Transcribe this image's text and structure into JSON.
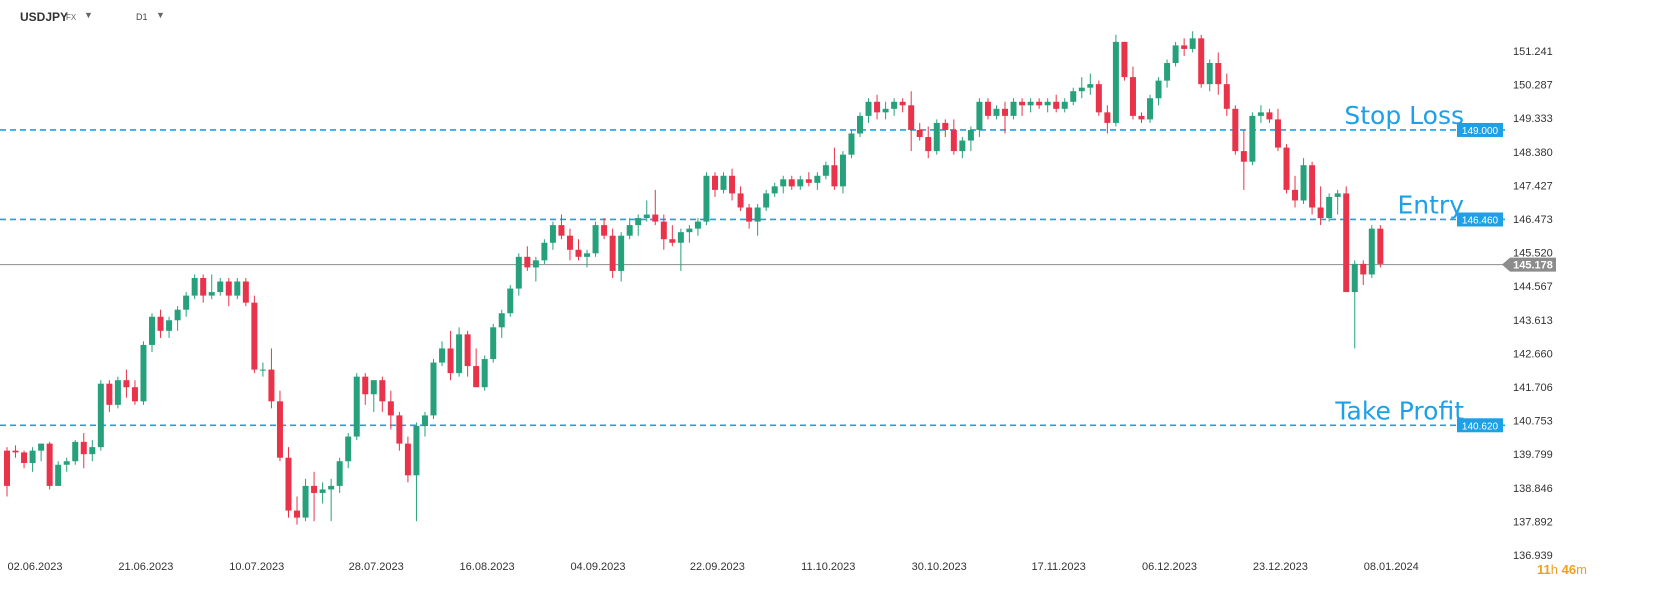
{
  "header": {
    "symbol": "USDJPY",
    "market": "FX",
    "timeframe": "D1",
    "dropdown_glyph": "▼"
  },
  "colors": {
    "bull": "#26a17b",
    "bear": "#e8334a",
    "level_line": "#1ea0e6",
    "level_label": "#1ea0e6",
    "current_line": "#8c8c8c",
    "axis_text": "#333333",
    "countdown": "#f0a020"
  },
  "countdown": {
    "hours": "11",
    "h_unit": "h",
    "minutes": "46",
    "m_unit": "m"
  },
  "chart_data": {
    "type": "candlestick",
    "symbol": "USDJPY",
    "timeframe": "D1",
    "ylim": [
      136.6,
      151.9
    ],
    "y_ticks": [
      "151.241",
      "150.287",
      "149.333",
      "148.380",
      "147.427",
      "146.473",
      "145.520",
      "144.567",
      "143.613",
      "142.660",
      "141.706",
      "140.753",
      "139.799",
      "138.846",
      "137.892",
      "136.939"
    ],
    "x_ticks": [
      {
        "label": "02.06.2023",
        "index": 0
      },
      {
        "label": "21.06.2023",
        "index": 13
      },
      {
        "label": "10.07.2023",
        "index": 26
      },
      {
        "label": "28.07.2023",
        "index": 40
      },
      {
        "label": "16.08.2023",
        "index": 53
      },
      {
        "label": "04.09.2023",
        "index": 66
      },
      {
        "label": "22.09.2023",
        "index": 80
      },
      {
        "label": "11.10.2023",
        "index": 93
      },
      {
        "label": "30.10.2023",
        "index": 106
      },
      {
        "label": "17.11.2023",
        "index": 120
      },
      {
        "label": "06.12.2023",
        "index": 133
      },
      {
        "label": "23.12.2023",
        "index": 146
      },
      {
        "label": "08.01.2024",
        "index": 159
      }
    ],
    "levels": [
      {
        "name": "Stop Loss",
        "price": 149.0,
        "label": "149.000"
      },
      {
        "name": "Entry",
        "price": 146.46,
        "label": "146.460"
      },
      {
        "name": "Take Profit",
        "price": 140.62,
        "label": "140.620"
      }
    ],
    "current_price": {
      "price": 145.178,
      "label": "145.178"
    },
    "candles": [
      [
        139.9,
        140.0,
        138.6,
        138.9
      ],
      [
        139.9,
        140.05,
        139.7,
        139.85
      ],
      [
        139.85,
        139.9,
        139.4,
        139.55
      ],
      [
        139.55,
        140.0,
        139.3,
        139.9
      ],
      [
        139.9,
        140.1,
        139.6,
        140.1
      ],
      [
        140.1,
        140.15,
        138.8,
        138.9
      ],
      [
        138.9,
        139.6,
        138.9,
        139.5
      ],
      [
        139.5,
        139.7,
        139.3,
        139.6
      ],
      [
        139.6,
        140.2,
        139.5,
        140.15
      ],
      [
        140.15,
        140.4,
        139.4,
        139.8
      ],
      [
        139.8,
        140.2,
        139.6,
        140.0
      ],
      [
        140.0,
        141.9,
        139.9,
        141.8
      ],
      [
        141.8,
        141.9,
        141.0,
        141.2
      ],
      [
        141.2,
        142.0,
        141.1,
        141.9
      ],
      [
        141.9,
        142.2,
        141.4,
        141.7
      ],
      [
        141.7,
        141.9,
        141.2,
        141.3
      ],
      [
        141.3,
        143.0,
        141.2,
        142.9
      ],
      [
        142.9,
        143.8,
        142.7,
        143.7
      ],
      [
        143.7,
        143.9,
        143.1,
        143.3
      ],
      [
        143.3,
        143.7,
        143.1,
        143.6
      ],
      [
        143.6,
        144.0,
        143.3,
        143.9
      ],
      [
        143.9,
        144.4,
        143.7,
        144.3
      ],
      [
        144.3,
        144.9,
        144.2,
        144.8
      ],
      [
        144.8,
        144.9,
        144.1,
        144.3
      ],
      [
        144.3,
        144.9,
        144.2,
        144.4
      ],
      [
        144.4,
        144.8,
        144.3,
        144.7
      ],
      [
        144.7,
        144.8,
        144.0,
        144.3
      ],
      [
        144.3,
        144.8,
        144.2,
        144.7
      ],
      [
        144.7,
        144.8,
        144.0,
        144.1
      ],
      [
        144.1,
        144.3,
        142.1,
        142.2
      ],
      [
        142.2,
        142.4,
        142.0,
        142.2
      ],
      [
        142.2,
        142.8,
        141.1,
        141.3
      ],
      [
        141.3,
        141.6,
        139.6,
        139.7
      ],
      [
        139.7,
        140.0,
        138.0,
        138.2
      ],
      [
        138.2,
        138.6,
        137.8,
        138.0
      ],
      [
        138.0,
        139.1,
        137.9,
        138.9
      ],
      [
        138.9,
        139.3,
        137.9,
        138.7
      ],
      [
        138.7,
        139.0,
        138.4,
        138.8
      ],
      [
        138.8,
        139.1,
        137.9,
        138.9
      ],
      [
        138.9,
        139.7,
        138.7,
        139.6
      ],
      [
        139.6,
        140.4,
        139.4,
        140.3
      ],
      [
        140.3,
        142.1,
        140.2,
        142.0
      ],
      [
        142.0,
        142.1,
        141.2,
        141.5
      ],
      [
        141.5,
        141.9,
        141.0,
        141.9
      ],
      [
        141.9,
        142.0,
        141.0,
        141.3
      ],
      [
        141.3,
        141.6,
        140.5,
        140.9
      ],
      [
        140.9,
        141.0,
        139.9,
        140.1
      ],
      [
        140.1,
        140.3,
        139.0,
        139.2
      ],
      [
        139.2,
        140.7,
        137.9,
        140.6
      ],
      [
        140.6,
        141.0,
        140.3,
        140.9
      ],
      [
        140.9,
        142.5,
        140.8,
        142.4
      ],
      [
        142.4,
        143.0,
        142.3,
        142.8
      ],
      [
        142.8,
        143.3,
        141.9,
        142.1
      ],
      [
        142.1,
        143.4,
        142.0,
        143.2
      ],
      [
        143.2,
        143.3,
        142.0,
        142.3
      ],
      [
        142.3,
        142.8,
        141.8,
        141.7
      ],
      [
        141.7,
        142.6,
        141.6,
        142.5
      ],
      [
        142.5,
        143.5,
        142.4,
        143.4
      ],
      [
        143.4,
        143.9,
        143.1,
        143.8
      ],
      [
        143.8,
        144.6,
        143.7,
        144.5
      ],
      [
        144.5,
        145.5,
        144.3,
        145.4
      ],
      [
        145.4,
        145.7,
        145.0,
        145.1
      ],
      [
        145.1,
        145.4,
        144.7,
        145.3
      ],
      [
        145.3,
        145.9,
        145.2,
        145.8
      ],
      [
        145.8,
        146.4,
        145.6,
        146.3
      ],
      [
        146.3,
        146.6,
        145.9,
        146.0
      ],
      [
        146.0,
        146.2,
        145.3,
        145.6
      ],
      [
        145.6,
        145.9,
        145.3,
        145.4
      ],
      [
        145.4,
        145.6,
        145.1,
        145.5
      ],
      [
        145.5,
        146.4,
        145.4,
        146.3
      ],
      [
        146.3,
        146.5,
        145.9,
        146.0
      ],
      [
        146.0,
        146.2,
        144.8,
        145.0
      ],
      [
        145.0,
        146.1,
        144.7,
        146.0
      ],
      [
        146.0,
        146.5,
        145.9,
        146.3
      ],
      [
        146.3,
        146.6,
        146.0,
        146.5
      ],
      [
        146.5,
        147.0,
        146.4,
        146.6
      ],
      [
        146.6,
        147.3,
        146.3,
        146.4
      ],
      [
        146.4,
        146.6,
        145.6,
        145.9
      ],
      [
        145.9,
        146.3,
        145.7,
        145.8
      ],
      [
        145.8,
        146.2,
        145.0,
        146.1
      ],
      [
        146.1,
        146.3,
        145.8,
        146.2
      ],
      [
        146.2,
        146.5,
        146.0,
        146.4
      ],
      [
        146.4,
        147.8,
        146.3,
        147.7
      ],
      [
        147.7,
        147.8,
        147.1,
        147.3
      ],
      [
        147.3,
        147.8,
        147.2,
        147.7
      ],
      [
        147.7,
        147.9,
        147.0,
        147.2
      ],
      [
        147.2,
        147.4,
        146.7,
        146.8
      ],
      [
        146.8,
        146.9,
        146.2,
        146.4
      ],
      [
        146.4,
        146.9,
        146.0,
        146.8
      ],
      [
        146.8,
        147.3,
        146.7,
        147.2
      ],
      [
        147.2,
        147.5,
        147.1,
        147.4
      ],
      [
        147.4,
        147.7,
        147.2,
        147.6
      ],
      [
        147.6,
        147.7,
        147.3,
        147.4
      ],
      [
        147.4,
        147.7,
        147.3,
        147.6
      ],
      [
        147.6,
        147.8,
        147.4,
        147.5
      ],
      [
        147.5,
        147.8,
        147.3,
        147.7
      ],
      [
        147.7,
        148.1,
        147.6,
        148.0
      ],
      [
        148.0,
        148.5,
        147.3,
        147.4
      ],
      [
        147.4,
        148.4,
        147.2,
        148.3
      ],
      [
        148.3,
        149.0,
        148.2,
        148.9
      ],
      [
        148.9,
        149.5,
        148.8,
        149.4
      ],
      [
        149.4,
        149.9,
        149.2,
        149.8
      ],
      [
        149.8,
        150.0,
        149.3,
        149.5
      ],
      [
        149.5,
        149.8,
        149.3,
        149.6
      ],
      [
        149.6,
        149.9,
        149.4,
        149.8
      ],
      [
        149.8,
        149.9,
        149.5,
        149.7
      ],
      [
        149.7,
        150.1,
        148.4,
        149.0
      ],
      [
        149.0,
        149.2,
        148.7,
        148.8
      ],
      [
        148.8,
        149.1,
        148.2,
        148.4
      ],
      [
        148.4,
        149.3,
        148.3,
        149.2
      ],
      [
        149.2,
        149.3,
        148.8,
        149.0
      ],
      [
        149.0,
        149.3,
        148.3,
        148.4
      ],
      [
        148.4,
        148.8,
        148.2,
        148.7
      ],
      [
        148.7,
        149.1,
        148.4,
        149.0
      ],
      [
        149.0,
        149.9,
        148.8,
        149.8
      ],
      [
        149.8,
        149.9,
        149.3,
        149.4
      ],
      [
        149.4,
        149.7,
        149.3,
        149.6
      ],
      [
        149.6,
        149.8,
        148.9,
        149.4
      ],
      [
        149.4,
        149.9,
        149.3,
        149.8
      ],
      [
        149.8,
        149.9,
        149.4,
        149.7
      ],
      [
        149.7,
        149.9,
        149.5,
        149.8
      ],
      [
        149.8,
        149.9,
        149.6,
        149.7
      ],
      [
        149.7,
        149.9,
        149.5,
        149.8
      ],
      [
        149.8,
        150.0,
        149.5,
        149.6
      ],
      [
        149.6,
        149.9,
        149.5,
        149.8
      ],
      [
        149.8,
        150.2,
        149.7,
        150.1
      ],
      [
        150.1,
        150.5,
        149.9,
        150.2
      ],
      [
        150.2,
        150.6,
        150.0,
        150.3
      ],
      [
        150.3,
        150.4,
        149.4,
        149.5
      ],
      [
        149.5,
        149.7,
        148.9,
        149.2
      ],
      [
        149.2,
        151.7,
        149.1,
        151.5
      ],
      [
        151.5,
        151.5,
        150.4,
        150.5
      ],
      [
        150.5,
        150.8,
        149.3,
        149.4
      ],
      [
        149.4,
        149.5,
        149.2,
        149.3
      ],
      [
        149.3,
        150.0,
        149.2,
        149.9
      ],
      [
        149.9,
        150.5,
        149.7,
        150.4
      ],
      [
        150.4,
        151.0,
        150.2,
        150.9
      ],
      [
        150.9,
        151.5,
        150.8,
        151.4
      ],
      [
        151.4,
        151.6,
        151.1,
        151.3
      ],
      [
        151.3,
        151.8,
        151.2,
        151.6
      ],
      [
        151.6,
        151.7,
        150.2,
        150.3
      ],
      [
        150.3,
        151.0,
        150.1,
        150.9
      ],
      [
        150.9,
        151.2,
        150.0,
        150.3
      ],
      [
        150.3,
        150.6,
        149.4,
        149.6
      ],
      [
        149.6,
        149.7,
        148.3,
        148.4
      ],
      [
        148.4,
        149.0,
        147.3,
        148.1
      ],
      [
        148.1,
        149.5,
        148.0,
        149.4
      ],
      [
        149.4,
        149.7,
        149.2,
        149.5
      ],
      [
        149.5,
        149.6,
        149.2,
        149.3
      ],
      [
        149.3,
        149.6,
        148.4,
        148.5
      ],
      [
        148.5,
        148.6,
        147.2,
        147.3
      ],
      [
        147.3,
        147.7,
        146.8,
        147.0
      ],
      [
        147.0,
        148.2,
        146.9,
        148.0
      ],
      [
        148.0,
        148.1,
        146.6,
        146.8
      ],
      [
        146.8,
        147.4,
        146.3,
        146.5
      ],
      [
        146.5,
        147.2,
        146.4,
        147.1
      ],
      [
        147.1,
        147.3,
        146.6,
        147.2
      ],
      [
        147.2,
        147.4,
        144.4,
        144.4
      ],
      [
        144.4,
        145.3,
        142.8,
        145.2
      ],
      [
        145.2,
        145.3,
        144.6,
        144.9
      ],
      [
        144.9,
        146.3,
        144.8,
        146.2
      ],
      [
        146.2,
        146.3,
        145.1,
        145.2
      ]
    ]
  }
}
